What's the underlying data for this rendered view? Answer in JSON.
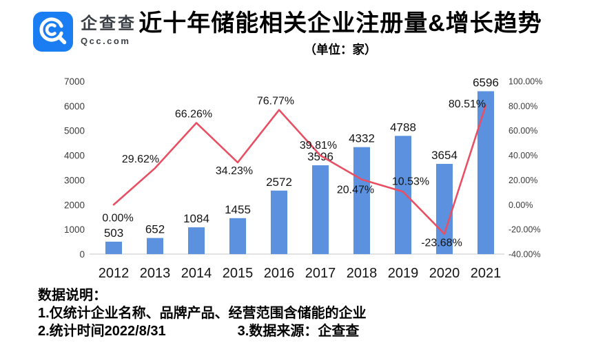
{
  "header": {
    "logo": {
      "brand_cn": "企查查",
      "brand_domain": "Qcc.com"
    },
    "title": "近十年储能相关企业注册量&增长趋势",
    "subtitle": "（单位：家）"
  },
  "colors": {
    "brand_blue": "#1B7DF2",
    "bar_blue": "#5B91DE",
    "line_red": "#E84F63",
    "axis_line": "#D9D9D9",
    "tick_text": "#3B3B3B",
    "label_text": "#141414"
  },
  "chart_data": {
    "type": "bar+line",
    "title": "近十年储能相关企业注册量&增长趋势",
    "subtitle": "（单位：家）",
    "categories": [
      "2012",
      "2013",
      "2014",
      "2015",
      "2016",
      "2017",
      "2018",
      "2019",
      "2020",
      "2021"
    ],
    "series": [
      {
        "name": "注册量",
        "type": "bar",
        "axis": "left",
        "color": "#5B91DE",
        "values": [
          503,
          652,
          1084,
          1455,
          2572,
          3596,
          4332,
          4788,
          3654,
          6596
        ],
        "labels": [
          "503",
          "652",
          "1084",
          "1455",
          "2572",
          "3596",
          "4332",
          "4788",
          "3654",
          "6596"
        ]
      },
      {
        "name": "增长趋势",
        "type": "line",
        "axis": "right",
        "color": "#E84F63",
        "values": [
          0.0,
          29.62,
          66.26,
          34.23,
          76.77,
          39.81,
          20.47,
          10.53,
          -23.68,
          80.51
        ],
        "labels": [
          "0.00%",
          "29.62%",
          "66.26%",
          "34.23%",
          "76.77%",
          "39.81%",
          "20.47%",
          "10.53%",
          "-23.68%",
          "80.51%"
        ],
        "label_offsets": [
          [
            6,
            24
          ],
          [
            -21,
            -8
          ],
          [
            -4,
            -8
          ],
          [
            -5,
            17
          ],
          [
            -5,
            -8
          ],
          [
            -3,
            -10
          ],
          [
            -9,
            20
          ],
          [
            11,
            -10
          ],
          [
            -4,
            18
          ],
          [
            -27,
            3
          ]
        ]
      }
    ],
    "left_axis": {
      "min": 0,
      "max": 7000,
      "tick_values": [
        0,
        1000,
        2000,
        3000,
        4000,
        5000,
        6000,
        7000
      ],
      "tick_labels": [
        "0",
        "1000",
        "2000",
        "3000",
        "4000",
        "5000",
        "6000",
        "7000"
      ]
    },
    "right_axis": {
      "min": -40,
      "max": 100,
      "tick_values": [
        -40,
        -20,
        0,
        20,
        40,
        60,
        80,
        100
      ],
      "tick_labels": [
        "-40.00%",
        "-20.00%",
        "0.00%",
        "20.00%",
        "40.00%",
        "60.00%",
        "80.00%",
        "100.00%"
      ]
    },
    "grid": false,
    "legend": "none",
    "baseline_color": "#D9D9D9"
  },
  "footer": {
    "heading": "数据说明：",
    "note1": "1.仅统计企业名称、品牌产品、经营范围含储能的企业",
    "note2": "2.统计时间2022/8/31",
    "note3": "3.数据来源：企查查"
  }
}
